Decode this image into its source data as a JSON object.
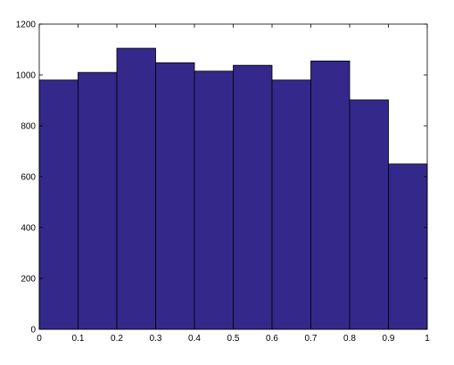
{
  "chart_data": {
    "type": "histogram",
    "bins": [
      0,
      0.1,
      0.2,
      0.3,
      0.4,
      0.5,
      0.6,
      0.7,
      0.8,
      0.9,
      1
    ],
    "counts": [
      980,
      1010,
      1105,
      1048,
      1015,
      1038,
      980,
      1055,
      902,
      650
    ],
    "color": "#34298a",
    "xlim": [
      0,
      1
    ],
    "xticks": [
      0,
      0.1,
      0.2,
      0.3,
      0.4,
      0.5,
      0.6,
      0.7,
      0.8,
      0.9,
      1
    ],
    "ylim": [
      0,
      1200
    ],
    "yticks": [
      0,
      200,
      400,
      600,
      800,
      1000,
      1200
    ],
    "grid": false
  }
}
